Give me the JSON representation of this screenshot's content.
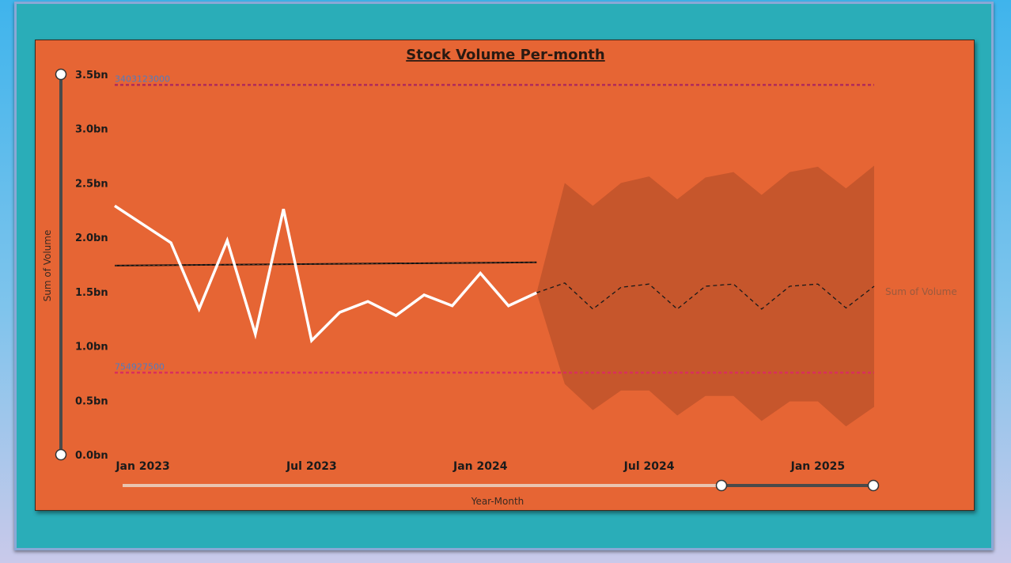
{
  "chart_data": {
    "type": "line",
    "title": "Stock Volume Per-month",
    "xlabel": "Year-Month",
    "ylabel": "Sum of Volume",
    "ylim": [
      0,
      3.5
    ],
    "y_unit_suffix": "bn",
    "y_ticks": [
      "0.0bn",
      "0.5bn",
      "1.0bn",
      "1.5bn",
      "2.0bn",
      "2.5bn",
      "3.0bn",
      "3.5bn"
    ],
    "x_ticks": [
      "Jan 2023",
      "Jul 2023",
      "Jan 2024",
      "Jul 2024",
      "Jan 2025"
    ],
    "x_tick_positions": [
      1,
      7,
      13,
      19,
      25
    ],
    "x_range": [
      0,
      27
    ],
    "series": [
      {
        "name": "Sum of Volume",
        "x": [
          0,
          1,
          2,
          3,
          4,
          5,
          6,
          7,
          8,
          9,
          10,
          11,
          12,
          13,
          14,
          15
        ],
        "values": [
          2.29,
          2.12,
          1.95,
          1.34,
          1.97,
          1.11,
          2.26,
          1.05,
          1.31,
          1.41,
          1.28,
          1.47,
          1.37,
          1.67,
          1.37,
          1.49
        ]
      }
    ],
    "forecast": {
      "x": [
        15,
        16,
        17,
        18,
        19,
        20,
        21,
        22,
        23,
        24,
        25,
        26,
        27
      ],
      "values": [
        1.49,
        1.58,
        1.34,
        1.54,
        1.57,
        1.34,
        1.55,
        1.57,
        1.34,
        1.55,
        1.57,
        1.35,
        1.55
      ],
      "upper": [
        1.49,
        2.5,
        2.29,
        2.5,
        2.56,
        2.35,
        2.55,
        2.6,
        2.39,
        2.6,
        2.65,
        2.45,
        2.66
      ],
      "lower": [
        1.49,
        0.65,
        0.41,
        0.59,
        0.59,
        0.36,
        0.54,
        0.54,
        0.31,
        0.49,
        0.49,
        0.26,
        0.44
      ]
    },
    "trend_line": {
      "x": [
        0,
        15
      ],
      "values": [
        1.74,
        1.77
      ]
    },
    "reference_lines": [
      {
        "label": "3403123000",
        "value": 3.403123,
        "color": "#b02a5a"
      },
      {
        "label": "754927500",
        "value": 0.7549275,
        "color": "#d92f5c"
      }
    ],
    "legend": {
      "label": "Sum of Volume",
      "placement": "right"
    },
    "colors": {
      "background": "#e66534",
      "line": "#ffffff",
      "forecast_band": "#c6562c",
      "trend": "#1a1a1a"
    },
    "grid": false
  }
}
